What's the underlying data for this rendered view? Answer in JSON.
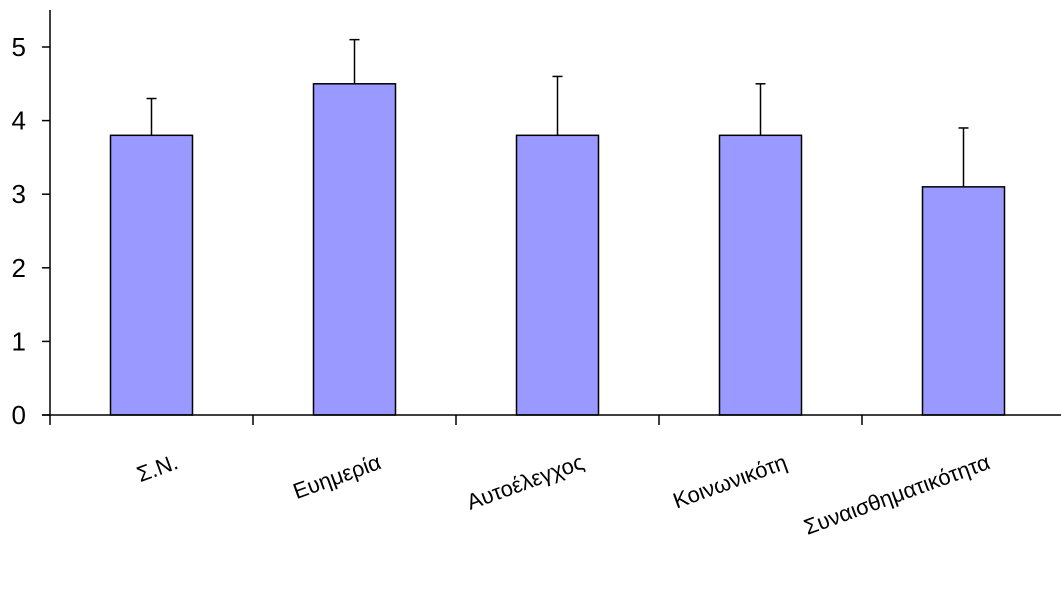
{
  "chart_data": {
    "type": "bar",
    "title": "",
    "xlabel": "",
    "ylabel": "",
    "categories": [
      "Σ.Ν.",
      "Ευημερία",
      "Αυτοέλεγχος",
      "Κοινωνικότη",
      "Συναισθηματικότητα"
    ],
    "values": [
      3.8,
      4.5,
      3.8,
      3.8,
      3.1
    ],
    "error_upper": [
      0.5,
      0.6,
      0.8,
      0.7,
      0.8
    ],
    "ylim": [
      0,
      5
    ],
    "yticks": [
      0,
      1,
      2,
      3,
      4,
      5
    ],
    "grid": false,
    "legend": "none",
    "colors": {
      "bar_fill": "#9999FF",
      "bar_stroke": "#000000",
      "axis": "#000000",
      "error_bar": "#000000"
    }
  }
}
